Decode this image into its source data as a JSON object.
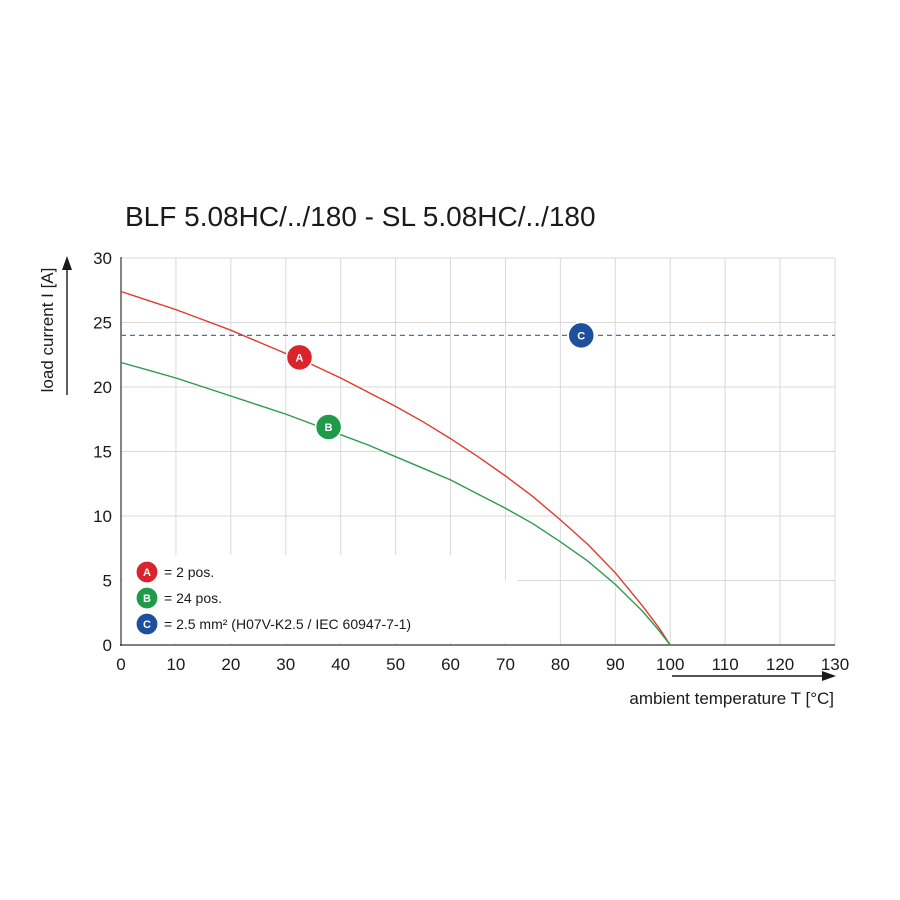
{
  "chart_data": {
    "type": "line",
    "title": "BLF 5.08HC/../180 - SL 5.08HC/../180",
    "xlabel": "ambient temperature T [°C]",
    "ylabel": "load current I [A]",
    "xlim": [
      0,
      130
    ],
    "ylim": [
      0,
      30
    ],
    "x_ticks": [
      0,
      10,
      20,
      30,
      40,
      50,
      60,
      70,
      80,
      90,
      100,
      110,
      120,
      130
    ],
    "y_ticks": [
      0,
      5,
      10,
      15,
      20,
      25,
      30
    ],
    "grid": true,
    "legend_position": "bottom-left",
    "series": [
      {
        "id": "A",
        "name": "= 2 pos.",
        "color": "#e03a2f",
        "marker_color": "#d9232d",
        "marker_at": [
          32.5,
          22.3
        ],
        "style": "solid",
        "x": [
          0,
          5,
          10,
          15,
          20,
          25,
          30,
          35,
          40,
          45,
          50,
          55,
          60,
          65,
          70,
          75,
          80,
          85,
          90,
          95,
          98,
          100
        ],
        "y": [
          27.4,
          26.7,
          26.0,
          25.2,
          24.4,
          23.5,
          22.6,
          21.7,
          20.7,
          19.6,
          18.5,
          17.3,
          16.0,
          14.6,
          13.1,
          11.5,
          9.7,
          7.8,
          5.6,
          3.0,
          1.3,
          0
        ]
      },
      {
        "id": "B",
        "name": "= 24 pos.",
        "color": "#2e9a4e",
        "marker_color": "#1f9a48",
        "marker_at": [
          37.8,
          16.9
        ],
        "style": "solid",
        "x": [
          0,
          5,
          10,
          15,
          20,
          25,
          30,
          35,
          40,
          45,
          50,
          55,
          60,
          65,
          70,
          75,
          80,
          85,
          90,
          95,
          98,
          100
        ],
        "y": [
          21.9,
          21.3,
          20.7,
          20.0,
          19.3,
          18.6,
          17.9,
          17.1,
          16.3,
          15.5,
          14.6,
          13.7,
          12.8,
          11.7,
          10.6,
          9.4,
          8.0,
          6.5,
          4.7,
          2.6,
          1.1,
          0
        ]
      },
      {
        "id": "C",
        "name": "= 2.5 mm² (H07V-K2.5 / IEC 60947-7-1)",
        "color": "#4a6fb5",
        "marker_color": "#1d4f9c",
        "marker_at": [
          83.8,
          24.0
        ],
        "style": "dashed",
        "x": [
          0,
          130
        ],
        "y": [
          24,
          24
        ]
      }
    ]
  }
}
